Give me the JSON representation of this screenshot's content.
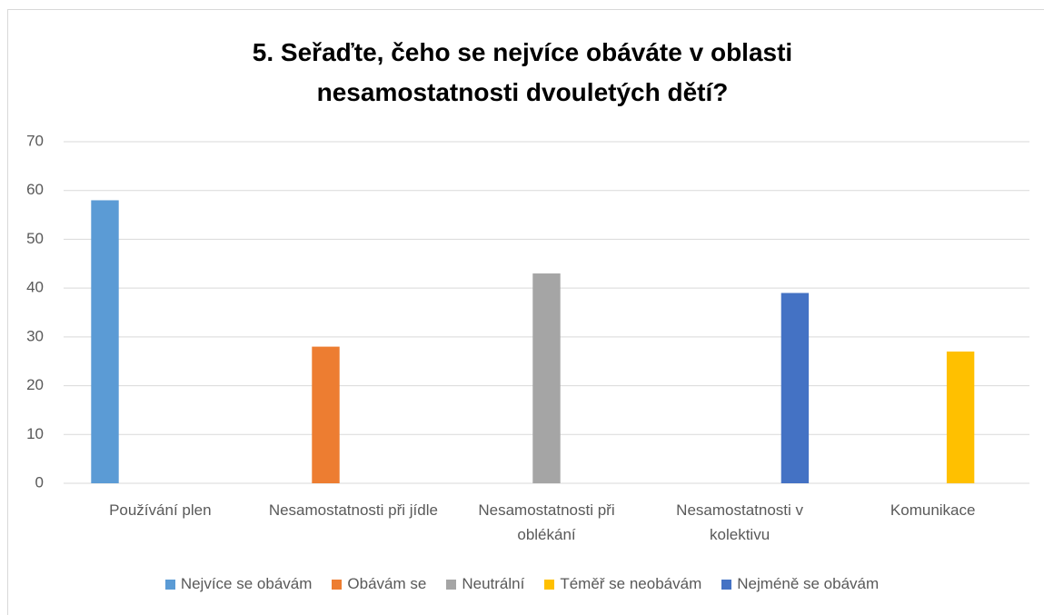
{
  "chart_data": {
    "type": "bar",
    "title": "5. Seřaďte, čeho se nejvíce obáváte v oblasti nesamostatnosti dvouletých dětí?",
    "categories": [
      "Používání plen",
      "Nesamostatnosti při jídle",
      "Nesamostatnosti při oblékání",
      "Nesamostatnosti v kolektivu",
      "Komunikace"
    ],
    "series": [
      {
        "name": "Nejvíce se obávám",
        "color": "#5b9bd5",
        "values": [
          58,
          null,
          null,
          null,
          null
        ]
      },
      {
        "name": "Obávám se",
        "color": "#ed7d31",
        "values": [
          null,
          28,
          null,
          null,
          null
        ]
      },
      {
        "name": "Neutrální",
        "color": "#a5a5a5",
        "values": [
          null,
          null,
          43,
          null,
          null
        ]
      },
      {
        "name": "Téměř se neobávám",
        "color": "#ffc000",
        "values": [
          null,
          null,
          null,
          null,
          27
        ]
      },
      {
        "name": "Nejméně se obávám",
        "color": "#4472c4",
        "values": [
          null,
          null,
          null,
          39,
          null
        ]
      }
    ],
    "ylim": [
      0,
      70
    ],
    "yticks": [
      0,
      10,
      20,
      30,
      40,
      50,
      60,
      70
    ],
    "grid": true,
    "legend": "bottom"
  }
}
